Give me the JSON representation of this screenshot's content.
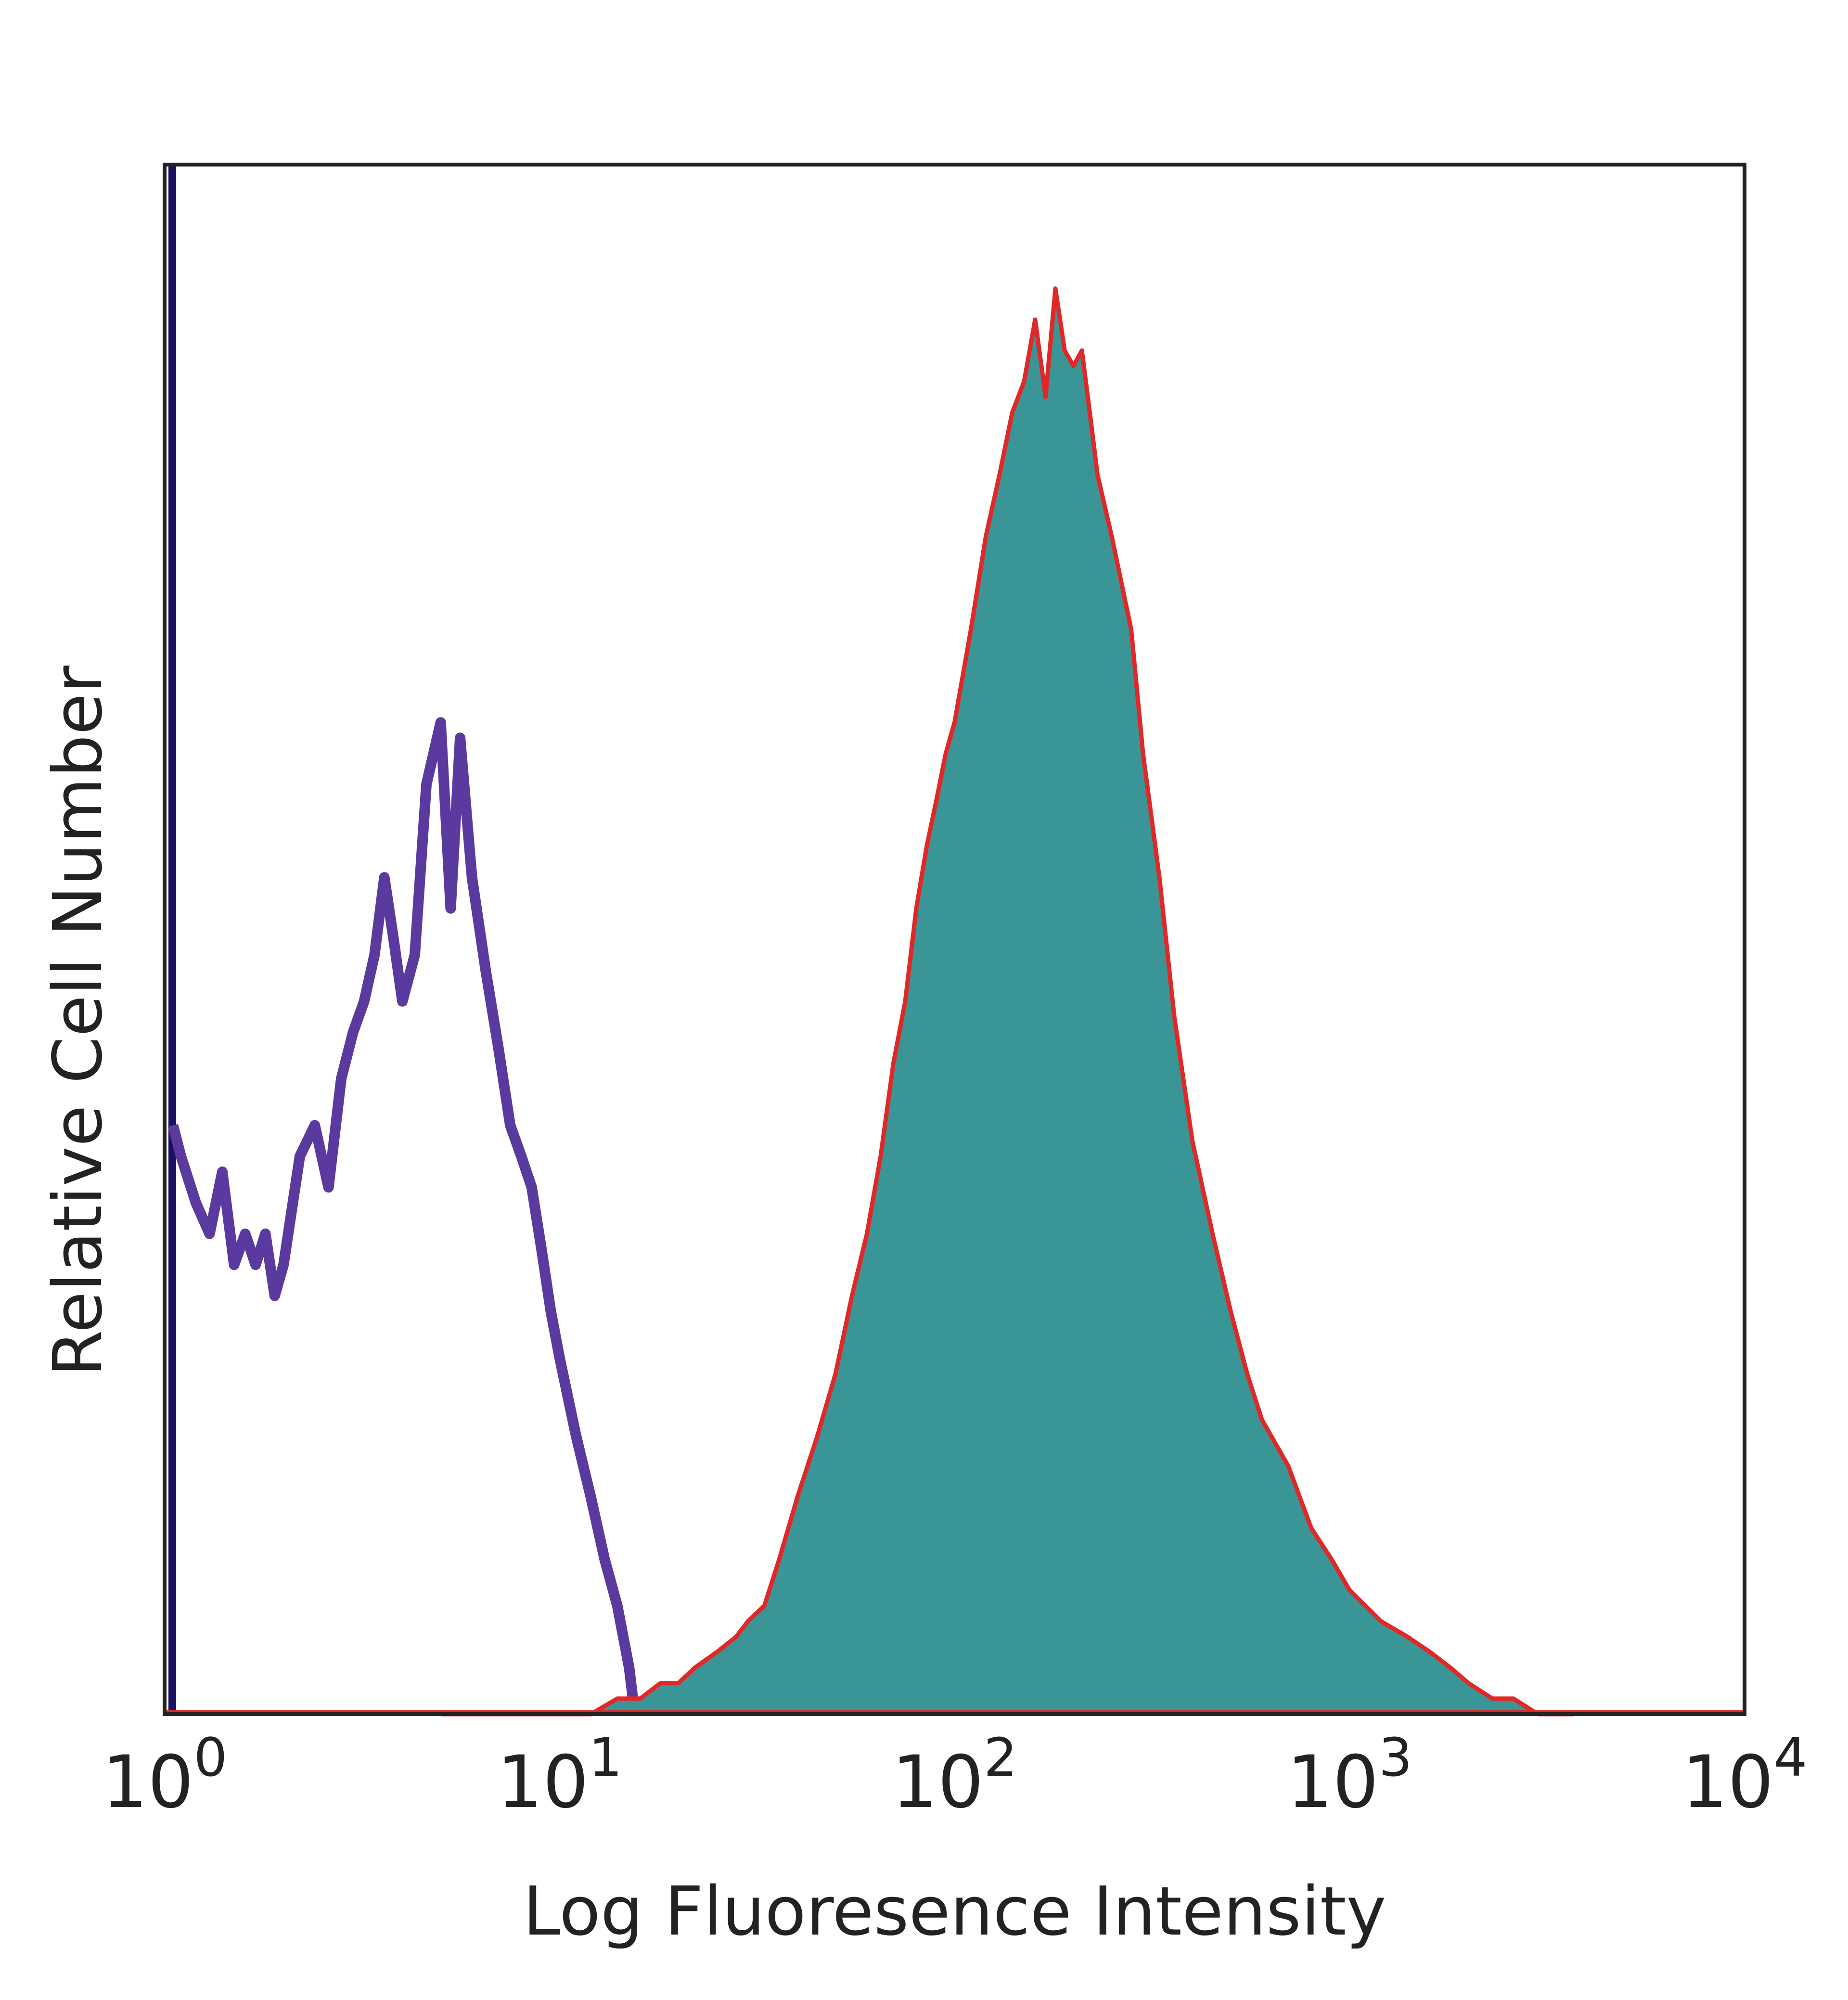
{
  "chart_data": {
    "type": "area",
    "title": "",
    "xlabel": "Log Fluoresence Intensity",
    "ylabel": "Relative Cell Number",
    "x_scale": "log",
    "xlim": [
      1,
      10000
    ],
    "ylim": [
      0,
      100
    ],
    "x_ticks": [
      {
        "value": 1,
        "base": "10",
        "exp": "0"
      },
      {
        "value": 10,
        "base": "10",
        "exp": "1"
      },
      {
        "value": 100,
        "base": "10",
        "exp": "2"
      },
      {
        "value": 1000,
        "base": "10",
        "exp": "3"
      },
      {
        "value": 10000,
        "base": "10",
        "exp": "4"
      }
    ],
    "grid": false,
    "legend": "none",
    "series": [
      {
        "style": "line",
        "color": "#5b3aa0",
        "x": [
          1.0,
          1.05,
          1.1,
          1.2,
          1.3,
          1.4,
          1.5,
          1.6,
          1.7,
          1.8,
          1.9,
          2.0,
          2.2,
          2.4,
          2.6,
          2.8,
          3.0,
          3.2,
          3.4,
          3.6,
          3.8,
          4.0,
          4.3,
          4.6,
          5.0,
          5.3,
          5.6,
          6.0,
          6.5,
          7.0,
          7.5,
          8.0,
          8.5,
          9.0,
          9.5,
          10.0,
          11.0,
          12.0,
          13.0,
          14.0,
          15.0,
          15.5
        ],
        "y": [
          100,
          38,
          36,
          33,
          31,
          35,
          29,
          31,
          29,
          31,
          27,
          29,
          36,
          38,
          34,
          41,
          44,
          46,
          49,
          54,
          50,
          46,
          49,
          60,
          64,
          52,
          63,
          54,
          48,
          43,
          38,
          36,
          34,
          30,
          26,
          23,
          18,
          14,
          10,
          7,
          3,
          0
        ]
      },
      {
        "style": "filled",
        "color": "#e02828",
        "fill": "#3a9696",
        "x": [
          5.0,
          8.0,
          12.0,
          14.0,
          15.0,
          16.0,
          18.0,
          20.0,
          22.0,
          25.0,
          28.0,
          30.0,
          33.0,
          36.0,
          40.0,
          45.0,
          50.0,
          55.0,
          60.0,
          65.0,
          70.0,
          75.0,
          80.0,
          85.0,
          90.0,
          95.0,
          100,
          110,
          120,
          130,
          140,
          150,
          160,
          170,
          180,
          190,
          200,
          210,
          220,
          230,
          250,
          280,
          300,
          330,
          360,
          400,
          450,
          500,
          550,
          600,
          700,
          800,
          900,
          1000,
          1200,
          1400,
          1600,
          1800,
          2000,
          2300,
          2600,
          3000,
          3500,
          3700
        ],
        "y": [
          0,
          0,
          0,
          1,
          1,
          1,
          2,
          2,
          3,
          4,
          5,
          6,
          7,
          10,
          14,
          18,
          22,
          27,
          31,
          36,
          42,
          46,
          52,
          56,
          59,
          62,
          64,
          70,
          76,
          80,
          84,
          86,
          90,
          85,
          92,
          88,
          87,
          88,
          84,
          80,
          76,
          70,
          62,
          54,
          45,
          37,
          31,
          26,
          22,
          19,
          16,
          12,
          10,
          8,
          6,
          5,
          4,
          3,
          2,
          1,
          1,
          0,
          0,
          0
        ]
      }
    ]
  }
}
